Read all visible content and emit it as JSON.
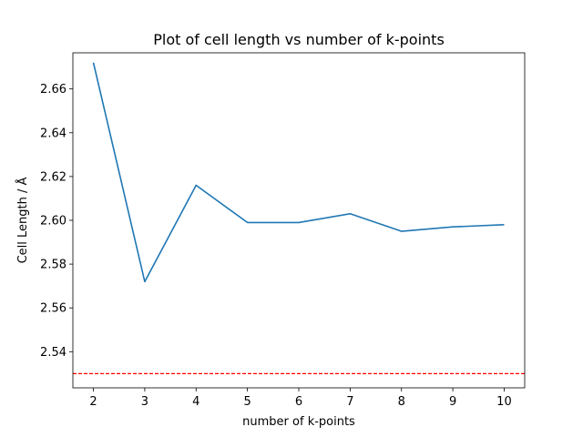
{
  "chart_data": {
    "type": "line",
    "title": "Plot of cell length vs number of k-points",
    "xlabel": "number of k-points",
    "ylabel": "Cell Length / Å",
    "xlim": [
      1.6,
      10.4
    ],
    "ylim": [
      2.5235,
      2.6765
    ],
    "xticks": [
      2,
      3,
      4,
      5,
      6,
      7,
      8,
      9,
      10
    ],
    "yticks": [
      2.54,
      2.56,
      2.58,
      2.6,
      2.62,
      2.64,
      2.66
    ],
    "ytick_labels": [
      "2.54",
      "2.56",
      "2.58",
      "2.60",
      "2.62",
      "2.64",
      "2.66"
    ],
    "grid": false,
    "series": [
      {
        "color": "#1f77b4",
        "x": [
          2,
          3,
          4,
          5,
          6,
          7,
          8,
          9,
          10
        ],
        "values": [
          2.672,
          2.572,
          2.616,
          2.599,
          2.599,
          2.603,
          2.595,
          2.597,
          2.598
        ]
      }
    ],
    "reference_line": {
      "y": 2.53,
      "color": "#ff0000",
      "style": "dashed"
    }
  }
}
